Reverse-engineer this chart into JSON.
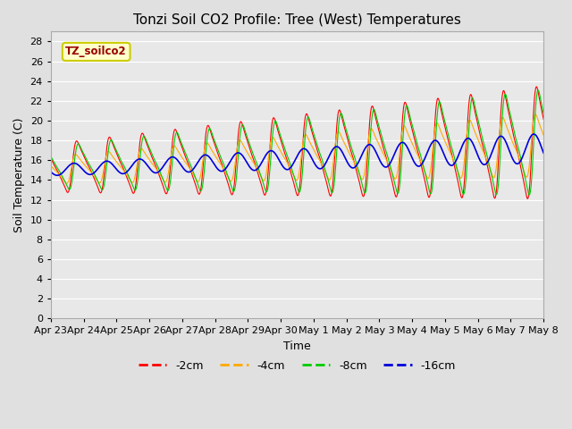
{
  "title": "Tonzi Soil CO2 Profile: Tree (West) Temperatures",
  "xlabel": "Time",
  "ylabel": "Soil Temperature (C)",
  "ylim": [
    0,
    29
  ],
  "yticks": [
    0,
    2,
    4,
    6,
    8,
    10,
    12,
    14,
    16,
    18,
    20,
    22,
    24,
    26,
    28
  ],
  "xtick_labels": [
    "Apr 23",
    "Apr 24",
    "Apr 25",
    "Apr 26",
    "Apr 27",
    "Apr 28",
    "Apr 29",
    "Apr 30",
    "May 1",
    "May 2",
    "May 3",
    "May 4",
    "May 5",
    "May 6",
    "May 7",
    "May 8"
  ],
  "legend_label": "TZ_soilco2",
  "legend_box_color": "#ffffcc",
  "legend_text_color": "#990000",
  "legend_box_edge": "#cccc00",
  "series_labels": [
    "-2cm",
    "-4cm",
    "-8cm",
    "-16cm"
  ],
  "series_colors": [
    "#ff0000",
    "#ffaa00",
    "#00cc00",
    "#0000dd"
  ],
  "background_color": "#e0e0e0",
  "plot_bg_color": "#e8e8e8",
  "grid_color": "#ffffff",
  "title_fontsize": 11,
  "axis_fontsize": 9,
  "tick_fontsize": 8
}
